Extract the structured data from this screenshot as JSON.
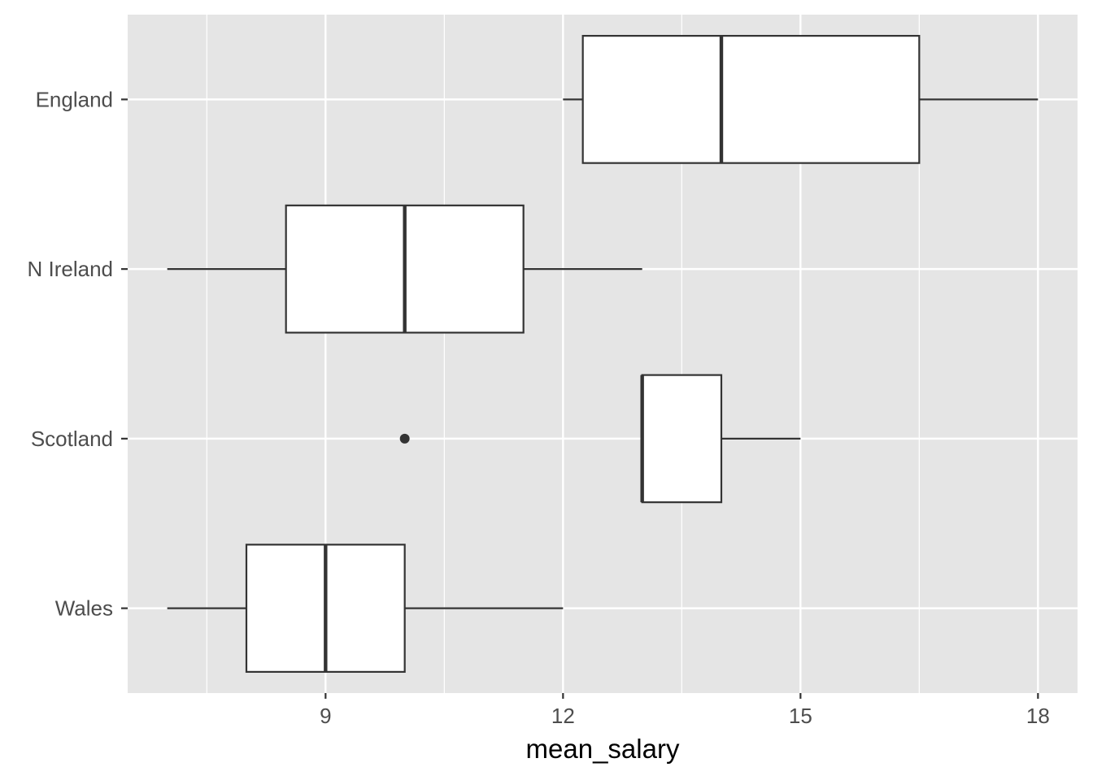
{
  "chart_data": {
    "type": "boxplot",
    "orientation": "horizontal",
    "xlabel": "mean_salary",
    "ylabel": "",
    "xlim": [
      6.5,
      18.5
    ],
    "x_ticks": [
      9,
      12,
      15,
      18
    ],
    "x_minor_ticks": [
      7.5,
      10.5,
      13.5,
      16.5
    ],
    "grid": true,
    "categories": [
      "England",
      "N Ireland",
      "Scotland",
      "Wales"
    ],
    "boxes": [
      {
        "category": "England",
        "whisker_low": 12,
        "q1": 12.25,
        "median": 14,
        "q3": 16.5,
        "whisker_high": 18,
        "outliers": []
      },
      {
        "category": "N Ireland",
        "whisker_low": 7,
        "q1": 8.5,
        "median": 10,
        "q3": 11.5,
        "whisker_high": 13,
        "outliers": []
      },
      {
        "category": "Scotland",
        "whisker_low": 13,
        "q1": 13,
        "median": 13,
        "q3": 14,
        "whisker_high": 15,
        "outliers": [
          10
        ]
      },
      {
        "category": "Wales",
        "whisker_low": 7,
        "q1": 8,
        "median": 9,
        "q3": 10,
        "whisker_high": 12,
        "outliers": []
      }
    ],
    "colors": {
      "panel_background": "#e5e5e5",
      "grid": "#ffffff",
      "box_fill": "#ffffff",
      "box_stroke": "#333333",
      "tick_label": "#4d4d4d"
    }
  }
}
